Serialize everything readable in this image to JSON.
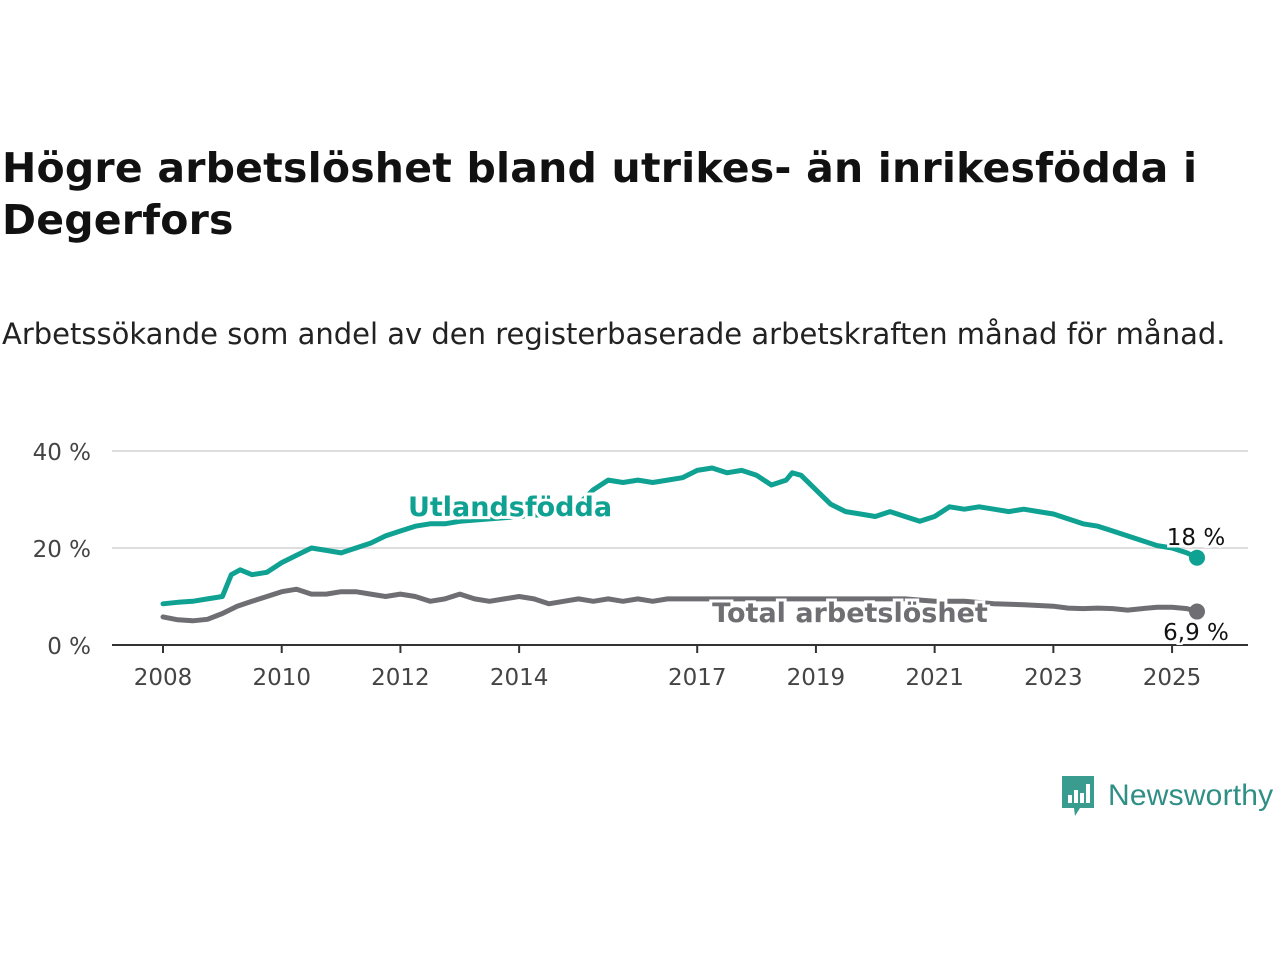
{
  "title": "Högre arbetslöshet bland utrikes- än inrikesfödda i Degerfors",
  "subtitle": "Arbetssökande som andel av den registerbaserade arbetskraften månad för månad.",
  "logo": {
    "name": "Newsworthy",
    "icon": "bar-chart-speech-bubble-icon",
    "color": "#3a9c8f"
  },
  "chart_data": {
    "type": "line",
    "x_axis": {
      "ticks": [
        2008,
        2010,
        2012,
        2014,
        2017,
        2019,
        2021,
        2023,
        2025
      ],
      "range": [
        2008,
        2025.42
      ]
    },
    "y_axis": {
      "ticks": [
        0,
        20,
        40
      ],
      "tick_labels": [
        "0 %",
        "20 %",
        "40 %"
      ],
      "range": [
        0,
        40
      ]
    },
    "grid": "horizontal",
    "series": [
      {
        "name": "Utlandsfödda",
        "color": "#0fa192",
        "end_label": "18 %",
        "points": [
          [
            2008.0,
            8.5
          ],
          [
            2008.25,
            8.8
          ],
          [
            2008.5,
            9.0
          ],
          [
            2008.75,
            9.5
          ],
          [
            2009.0,
            10.0
          ],
          [
            2009.15,
            14.5
          ],
          [
            2009.3,
            15.5
          ],
          [
            2009.5,
            14.5
          ],
          [
            2009.75,
            15.0
          ],
          [
            2010.0,
            17.0
          ],
          [
            2010.25,
            18.5
          ],
          [
            2010.5,
            20.0
          ],
          [
            2010.75,
            19.5
          ],
          [
            2011.0,
            19.0
          ],
          [
            2011.25,
            20.0
          ],
          [
            2011.5,
            21.0
          ],
          [
            2011.75,
            22.5
          ],
          [
            2012.0,
            23.5
          ],
          [
            2012.25,
            24.5
          ],
          [
            2012.5,
            25.0
          ],
          [
            2012.75,
            25.0
          ],
          [
            2013.0,
            25.5
          ],
          [
            2013.5,
            26.0
          ],
          [
            2014.0,
            26.5
          ],
          [
            2014.5,
            27.0
          ],
          [
            2015.0,
            29.0
          ],
          [
            2015.25,
            32.0
          ],
          [
            2015.5,
            34.0
          ],
          [
            2015.75,
            33.5
          ],
          [
            2016.0,
            34.0
          ],
          [
            2016.25,
            33.5
          ],
          [
            2016.5,
            34.0
          ],
          [
            2016.75,
            34.5
          ],
          [
            2017.0,
            36.0
          ],
          [
            2017.25,
            36.5
          ],
          [
            2017.5,
            35.5
          ],
          [
            2017.75,
            36.0
          ],
          [
            2018.0,
            35.0
          ],
          [
            2018.25,
            33.0
          ],
          [
            2018.5,
            34.0
          ],
          [
            2018.6,
            35.5
          ],
          [
            2018.75,
            35.0
          ],
          [
            2019.0,
            32.0
          ],
          [
            2019.25,
            29.0
          ],
          [
            2019.5,
            27.5
          ],
          [
            2019.75,
            27.0
          ],
          [
            2020.0,
            26.5
          ],
          [
            2020.25,
            27.5
          ],
          [
            2020.5,
            26.5
          ],
          [
            2020.75,
            25.5
          ],
          [
            2021.0,
            26.5
          ],
          [
            2021.25,
            28.5
          ],
          [
            2021.5,
            28.0
          ],
          [
            2021.75,
            28.5
          ],
          [
            2022.0,
            28.0
          ],
          [
            2022.25,
            27.5
          ],
          [
            2022.5,
            28.0
          ],
          [
            2022.75,
            27.5
          ],
          [
            2023.0,
            27.0
          ],
          [
            2023.25,
            26.0
          ],
          [
            2023.5,
            25.0
          ],
          [
            2023.75,
            24.5
          ],
          [
            2024.0,
            23.5
          ],
          [
            2024.25,
            22.5
          ],
          [
            2024.5,
            21.5
          ],
          [
            2024.75,
            20.5
          ],
          [
            2025.0,
            20.0
          ],
          [
            2025.25,
            19.0
          ],
          [
            2025.42,
            18.0
          ]
        ]
      },
      {
        "name": "Total arbetslöshet",
        "color": "#6f6e73",
        "end_label": "6,9 %",
        "points": [
          [
            2008.0,
            5.8
          ],
          [
            2008.25,
            5.2
          ],
          [
            2008.5,
            5.0
          ],
          [
            2008.75,
            5.3
          ],
          [
            2009.0,
            6.5
          ],
          [
            2009.25,
            8.0
          ],
          [
            2009.5,
            9.0
          ],
          [
            2009.75,
            10.0
          ],
          [
            2010.0,
            11.0
          ],
          [
            2010.25,
            11.5
          ],
          [
            2010.5,
            10.5
          ],
          [
            2010.75,
            10.5
          ],
          [
            2011.0,
            11.0
          ],
          [
            2011.25,
            11.0
          ],
          [
            2011.5,
            10.5
          ],
          [
            2011.75,
            10.0
          ],
          [
            2012.0,
            10.5
          ],
          [
            2012.25,
            10.0
          ],
          [
            2012.5,
            9.0
          ],
          [
            2012.75,
            9.5
          ],
          [
            2013.0,
            10.5
          ],
          [
            2013.25,
            9.5
          ],
          [
            2013.5,
            9.0
          ],
          [
            2013.75,
            9.5
          ],
          [
            2014.0,
            10.0
          ],
          [
            2014.25,
            9.5
          ],
          [
            2014.5,
            8.5
          ],
          [
            2014.75,
            9.0
          ],
          [
            2015.0,
            9.5
          ],
          [
            2015.25,
            9.0
          ],
          [
            2015.5,
            9.5
          ],
          [
            2015.75,
            9.0
          ],
          [
            2016.0,
            9.5
          ],
          [
            2016.25,
            9.0
          ],
          [
            2016.5,
            9.5
          ],
          [
            2016.75,
            9.5
          ],
          [
            2017.0,
            9.5
          ],
          [
            2017.25,
            9.5
          ],
          [
            2017.5,
            9.5
          ],
          [
            2017.75,
            9.5
          ],
          [
            2018.0,
            9.5
          ],
          [
            2018.5,
            9.5
          ],
          [
            2019.0,
            9.5
          ],
          [
            2019.5,
            9.5
          ],
          [
            2020.0,
            9.5
          ],
          [
            2020.5,
            9.5
          ],
          [
            2021.0,
            9.0
          ],
          [
            2021.5,
            9.0
          ],
          [
            2022.0,
            8.5
          ],
          [
            2022.5,
            8.3
          ],
          [
            2023.0,
            8.0
          ],
          [
            2023.25,
            7.6
          ],
          [
            2023.5,
            7.5
          ],
          [
            2023.75,
            7.6
          ],
          [
            2024.0,
            7.5
          ],
          [
            2024.25,
            7.2
          ],
          [
            2024.5,
            7.5
          ],
          [
            2024.75,
            7.8
          ],
          [
            2025.0,
            7.8
          ],
          [
            2025.25,
            7.5
          ],
          [
            2025.42,
            6.9
          ]
        ]
      }
    ]
  }
}
